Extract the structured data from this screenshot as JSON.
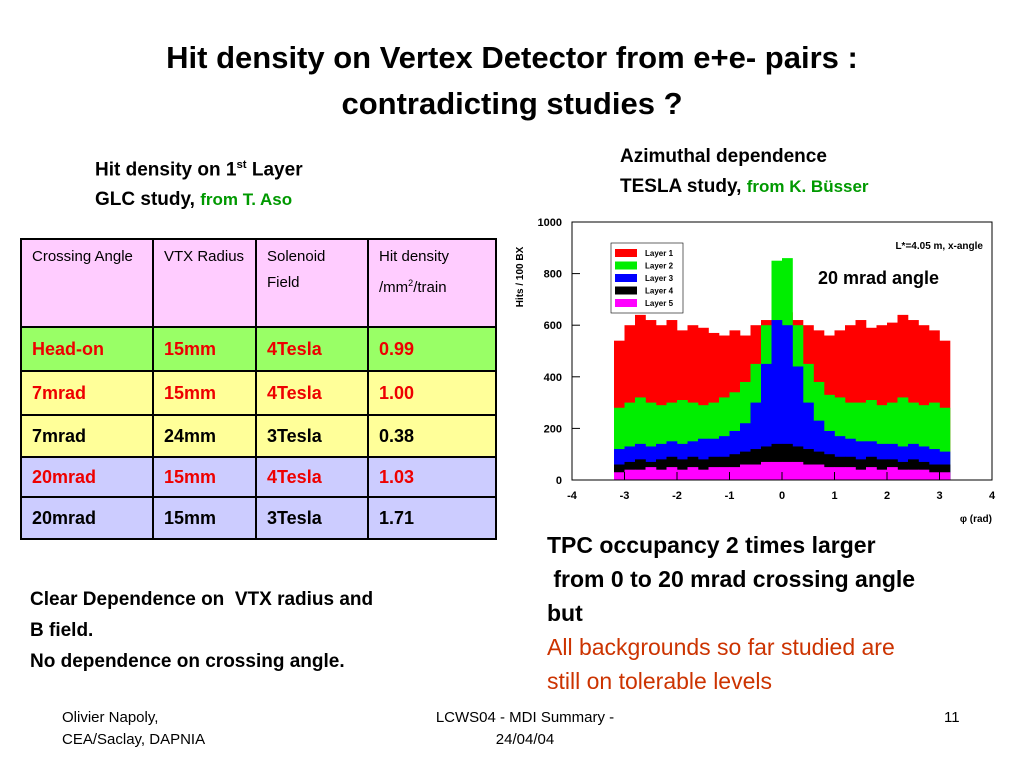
{
  "title": [
    "Hit density on Vertex Detector  from e+e- pairs :",
    "contradicting studies ?"
  ],
  "left_heading": {
    "line1": "Hit density on 1",
    "sup": "st",
    "line1_end": " Layer",
    "line2": "GLC study, ",
    "credit": "from T. Aso"
  },
  "right_heading": {
    "line1": "Azimuthal dependence",
    "line2": "TESLA study, ",
    "credit": "from K. Büsser"
  },
  "table": {
    "header": [
      "Crossing Angle",
      "VTX Radius",
      "Solenoid Field",
      {
        "text": "Hit density /mm",
        "sup": "2",
        "after": "/train"
      }
    ],
    "header_color": "#ffccff",
    "rows": [
      [
        "Head-on",
        "15mm",
        "4Tesla",
        "0.99"
      ],
      [
        "7mrad",
        "15mm",
        "4Tesla",
        "1.00"
      ],
      [
        "7mrad",
        "24mm",
        "3Tesla",
        "0.38"
      ],
      [
        "20mrad",
        "15mm",
        "4Tesla",
        "1.03"
      ],
      [
        "20mrad",
        "15mm",
        "3Tesla",
        "1.71"
      ]
    ],
    "row_colors": [
      "#99ff66",
      "#ffff99",
      "#ffff99",
      "#ccccff",
      "#ccccff"
    ],
    "text_colors": [
      "#ee0000",
      "#ee0000",
      "#000000",
      "#ee0000",
      "#000000"
    ]
  },
  "chart_overlay": "20 mrad angle",
  "tpc_text": [
    "TPC occupancy 2 times larger",
    " from 0 to 20 mrad crossing angle",
    "but"
  ],
  "tpc_note": [
    "All backgrounds so far studied are",
    "still on tolerable levels"
  ],
  "conclusion": [
    "Clear Dependence on  VTX radius and",
    "B field.",
    "No dependence on crossing angle."
  ],
  "footer": {
    "left": [
      "Olivier Napoly,",
      "CEA/Saclay, DAPNIA"
    ],
    "center": [
      "LCWS04 - MDI Summary -",
      "24/04/04"
    ],
    "right": "11"
  },
  "chart_data": {
    "type": "histogram",
    "annotation": "L*=4.05 m, x-angle",
    "x_label": "φ (rad)",
    "y_label": "Hits / 100 BX",
    "xlim": [
      -4,
      4
    ],
    "ylim": [
      0,
      1000
    ],
    "xticks": [
      -4,
      -3,
      -2,
      -1,
      0,
      1,
      2,
      3,
      4
    ],
    "yticks": [
      0,
      200,
      400,
      600,
      800,
      1000
    ],
    "bins": [
      -3.2,
      -3.0,
      -2.8,
      -2.6,
      -2.4,
      -2.2,
      -2.0,
      -1.8,
      -1.6,
      -1.4,
      -1.2,
      -1.0,
      -0.8,
      -0.6,
      -0.4,
      -0.2,
      0,
      0.2,
      0.4,
      0.6,
      0.8,
      1.0,
      1.2,
      1.4,
      1.6,
      1.8,
      2.0,
      2.2,
      2.4,
      2.6,
      2.8,
      3.0,
      3.2
    ],
    "series": [
      {
        "name": "Layer 1",
        "color": "#ff0000",
        "values": [
          540,
          600,
          640,
          620,
          600,
          620,
          580,
          600,
          590,
          570,
          560,
          580,
          560,
          600,
          620,
          640,
          650,
          620,
          600,
          580,
          560,
          580,
          600,
          620,
          590,
          600,
          610,
          640,
          620,
          600,
          580,
          540
        ]
      },
      {
        "name": "Layer 2",
        "color": "#00ee00",
        "values": [
          280,
          300,
          320,
          300,
          290,
          300,
          310,
          300,
          290,
          300,
          320,
          340,
          380,
          450,
          600,
          850,
          860,
          600,
          450,
          380,
          330,
          320,
          300,
          300,
          310,
          290,
          300,
          320,
          300,
          290,
          300,
          280
        ]
      },
      {
        "name": "Layer 3",
        "color": "#0000ff",
        "values": [
          120,
          130,
          140,
          130,
          140,
          150,
          140,
          150,
          160,
          160,
          170,
          190,
          220,
          300,
          450,
          620,
          600,
          440,
          300,
          230,
          190,
          170,
          160,
          150,
          150,
          140,
          140,
          130,
          140,
          130,
          120,
          110
        ]
      },
      {
        "name": "Layer 4",
        "color": "#000000",
        "values": [
          60,
          70,
          80,
          70,
          80,
          90,
          80,
          90,
          80,
          90,
          90,
          100,
          110,
          120,
          130,
          140,
          140,
          130,
          120,
          110,
          100,
          90,
          90,
          80,
          90,
          80,
          80,
          70,
          80,
          70,
          60,
          60
        ]
      },
      {
        "name": "Layer 5",
        "color": "#ff00ff",
        "values": [
          30,
          40,
          40,
          50,
          40,
          50,
          40,
          50,
          40,
          50,
          50,
          50,
          60,
          60,
          70,
          70,
          70,
          70,
          60,
          60,
          50,
          50,
          50,
          40,
          50,
          40,
          50,
          40,
          40,
          40,
          30,
          30
        ]
      }
    ]
  }
}
